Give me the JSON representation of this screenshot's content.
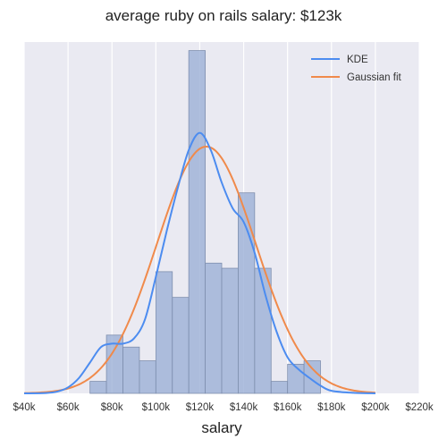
{
  "chart_data": {
    "type": "histogram",
    "title": "average ruby on rails salary: $123k",
    "xlabel": "salary",
    "ylabel": "",
    "xlim": [
      40000,
      220000
    ],
    "ylim": [
      0,
      20.5
    ],
    "grid": true,
    "legend_position": "top-right",
    "x_ticks": [
      40000,
      60000,
      80000,
      100000,
      120000,
      140000,
      160000,
      180000,
      200000,
      220000
    ],
    "x_tick_labels": [
      "$40k",
      "$60k",
      "$80k",
      "$100k",
      "$120k",
      "$140k",
      "$160k",
      "$180k",
      "$200k",
      "$220k"
    ],
    "bin_edges": [
      70000,
      77500,
      85000,
      92500,
      100000,
      107500,
      115000,
      122500,
      130000,
      137500,
      145000,
      152500,
      160000,
      167500,
      175000
    ],
    "counts": [
      0.7,
      3.4,
      2.7,
      1.9,
      7.1,
      5.6,
      20.0,
      7.6,
      7.3,
      11.7,
      7.3,
      0.7,
      1.7,
      1.9
    ],
    "series": [
      {
        "name": "KDE",
        "color": "#4c8cf0",
        "x": [
          40000,
          50000,
          55000,
          60000,
          65000,
          70000,
          75000,
          80000,
          85000,
          90000,
          95000,
          100000,
          105000,
          110000,
          115000,
          120000,
          125000,
          130000,
          135000,
          140000,
          145000,
          150000,
          155000,
          160000,
          165000,
          170000,
          175000,
          180000,
          190000,
          200000
        ],
        "y": [
          0,
          0.02,
          0.1,
          0.35,
          0.9,
          1.8,
          2.7,
          2.9,
          2.9,
          3.2,
          4.3,
          6.8,
          9.5,
          12.0,
          14.2,
          15.2,
          14.2,
          12.3,
          10.8,
          10.0,
          8.2,
          5.7,
          3.6,
          2.1,
          1.4,
          0.9,
          0.45,
          0.15,
          0.03,
          0
        ]
      },
      {
        "name": "Gaussian fit",
        "color": "#f08a4b",
        "mean": 123000,
        "std": 22500,
        "peak": 14.4,
        "x_range": [
          40000,
          200000
        ]
      }
    ],
    "hist_color": "#9aaed6"
  }
}
